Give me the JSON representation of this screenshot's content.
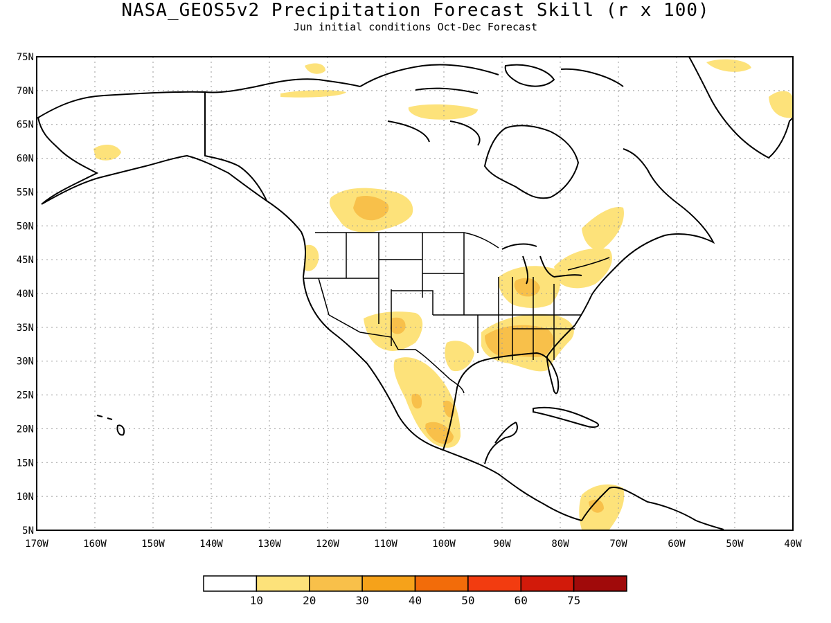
{
  "map": {
    "title": "NASA_GEOS5v2 Precipitation Forecast Skill (r x 100)",
    "subtitle": "Jun initial conditions  Oct-Dec Forecast",
    "lon_range": [
      -170,
      -40
    ],
    "lat_range": [
      5,
      75
    ],
    "lon_ticks": [
      "170W",
      "160W",
      "150W",
      "140W",
      "130W",
      "120W",
      "110W",
      "100W",
      "90W",
      "80W",
      "70W",
      "60W",
      "50W",
      "40W"
    ],
    "lat_ticks": [
      "5N",
      "10N",
      "15N",
      "20N",
      "25N",
      "30N",
      "35N",
      "40N",
      "45N",
      "50N",
      "55N",
      "60N",
      "65N",
      "70N",
      "75N"
    ],
    "grid": "dotted",
    "colorbar": {
      "labels": [
        "10",
        "20",
        "30",
        "40",
        "50",
        "60",
        "75"
      ],
      "colors": [
        "#ffffff",
        "#fde27a",
        "#f8c04a",
        "#f6a21a",
        "#f26c0a",
        "#f23c10",
        "#d21a0a",
        "#a00a0a"
      ]
    },
    "regions": [
      {
        "name": "central-mexico",
        "level": 2
      },
      {
        "name": "southeast-us",
        "level": 2
      },
      {
        "name": "western-canada",
        "level": 1
      },
      {
        "name": "southwest-us",
        "level": 1
      },
      {
        "name": "northeast-us",
        "level": 1
      },
      {
        "name": "colombia",
        "level": 1
      },
      {
        "name": "greenland-east",
        "level": 1
      }
    ]
  }
}
